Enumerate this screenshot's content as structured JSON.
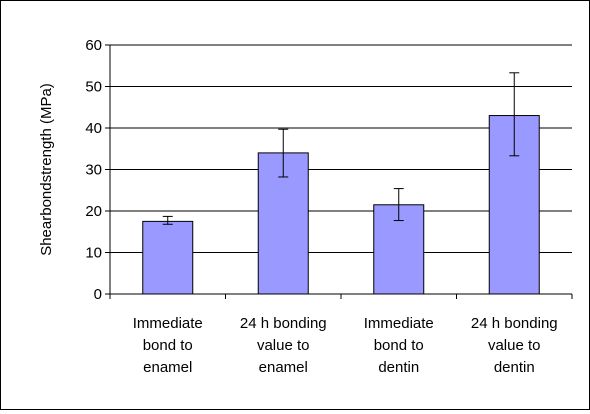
{
  "chart_data": {
    "type": "bar",
    "title": "",
    "xlabel": "",
    "ylabel": "Shearbondstrength (MPa)",
    "ylim": [
      0,
      60
    ],
    "yticks": [
      0,
      10,
      20,
      30,
      40,
      50,
      60
    ],
    "grid": true,
    "legend": "none",
    "categories": [
      [
        "Immediate",
        "bond to",
        "enamel"
      ],
      [
        "24 h bonding",
        "value to",
        "enamel"
      ],
      [
        "Immediate",
        "bond to",
        "dentin"
      ],
      [
        "24 h bonding",
        "value to",
        "dentin"
      ]
    ],
    "values": [
      17.5,
      34,
      21.5,
      43
    ],
    "error_low": [
      16.8,
      28.2,
      17.7,
      33.3
    ],
    "error_high": [
      18.7,
      39.7,
      25.4,
      53.3
    ],
    "bar_color": "#9999ff",
    "bar_edge_color": "#000000",
    "grid_color": "#000000"
  }
}
